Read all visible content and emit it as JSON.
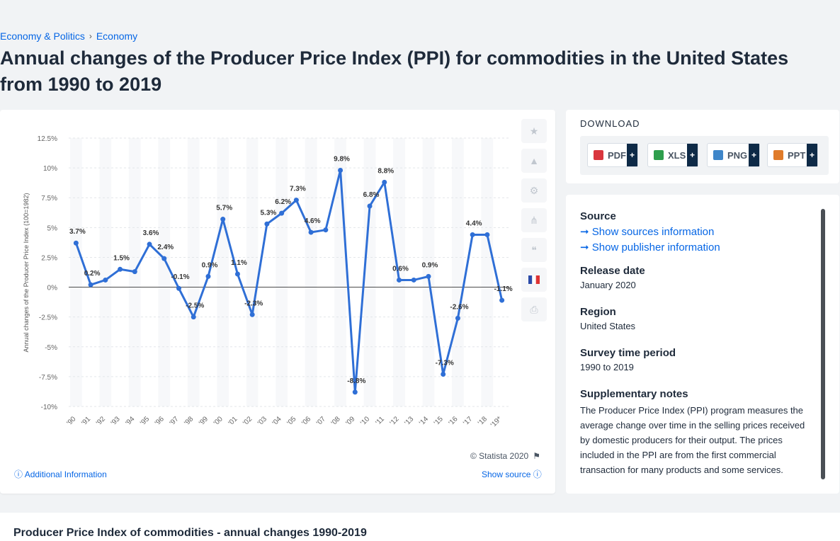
{
  "breadcrumb": {
    "item1": "Economy & Politics",
    "sep": "›",
    "item2": "Economy"
  },
  "title": "Annual changes of the Producer Price Index (PPI) for commodities in the United States from 1990 to 2019",
  "copyright": "© Statista 2020",
  "additional_info": "Additional Information",
  "show_source": "Show source",
  "download": {
    "heading": "DOWNLOAD",
    "buttons": [
      {
        "label": "PDF",
        "icon_color": "#d9363e"
      },
      {
        "label": "XLS",
        "icon_color": "#2e9e4d"
      },
      {
        "label": "PNG",
        "icon_color": "#3f86c9"
      },
      {
        "label": "PPT",
        "icon_color": "#e07b2a"
      }
    ],
    "plus": "+"
  },
  "info": {
    "source_label": "Source",
    "show_sources": "Show sources information",
    "show_publisher": "Show publisher information",
    "release_label": "Release date",
    "release_value": "January 2020",
    "region_label": "Region",
    "region_value": "United States",
    "survey_label": "Survey time period",
    "survey_value": "1990 to 2019",
    "notes_label": "Supplementary notes",
    "notes_text": "The Producer Price Index (PPI) program measures the average change over time in the selling prices received by domestic producers for their output. The prices included in the PPI are from the first commercial transaction for many products and some services."
  },
  "bottom_title": "Producer Price Index of commodities - annual changes 1990-2019",
  "colors": {
    "line": "#2f6fd6",
    "accent": "#0666e5"
  },
  "chart_data": {
    "type": "line",
    "ylabel": "Annual changes of the Producer Price Index (100=1982)",
    "ylim": [
      -10,
      12.5
    ],
    "yticks": [
      12.5,
      10,
      7.5,
      5,
      2.5,
      0,
      -2.5,
      -5,
      -7.5,
      -10
    ],
    "ytick_labels": [
      "12.5%",
      "10%",
      "7.5%",
      "5%",
      "2.5%",
      "0%",
      "-2.5%",
      "-5%",
      "-7.5%",
      "-10%"
    ],
    "categories": [
      "'90",
      "'91",
      "'92",
      "'93",
      "'94",
      "'95",
      "'96",
      "'97",
      "'98",
      "'99",
      "'00",
      "'01",
      "'02",
      "'03",
      "'04",
      "'05",
      "'06",
      "'07",
      "'08",
      "'09",
      "'10",
      "'11",
      "'12",
      "'13",
      "'14",
      "'15",
      "'16",
      "'17",
      "'18",
      "'19*"
    ],
    "values": [
      3.7,
      0.2,
      0.6,
      1.5,
      1.3,
      3.6,
      2.4,
      -0.1,
      -2.5,
      0.9,
      5.7,
      1.1,
      -2.3,
      5.3,
      6.2,
      7.3,
      4.6,
      4.8,
      9.8,
      -8.8,
      6.8,
      8.8,
      0.6,
      0.6,
      0.9,
      -7.3,
      -2.6,
      4.4,
      4.4,
      -1.1
    ],
    "labels": [
      "3.7%",
      "0.2%",
      "",
      "1.5%",
      "",
      "3.6%",
      "2.4%",
      "-0.1%",
      "-2.5%",
      "0.9%",
      "5.7%",
      "1.1%",
      "-2.3%",
      "5.3%",
      "6.2%",
      "7.3%",
      "4.6%",
      "",
      "9.8%",
      "-8.8%",
      "6.8%",
      "8.8%",
      "0.6%",
      "",
      "0.9%",
      "-7.3%",
      "-2.6%",
      "4.4%",
      "",
      "-1.1%"
    ],
    "grid": true
  }
}
